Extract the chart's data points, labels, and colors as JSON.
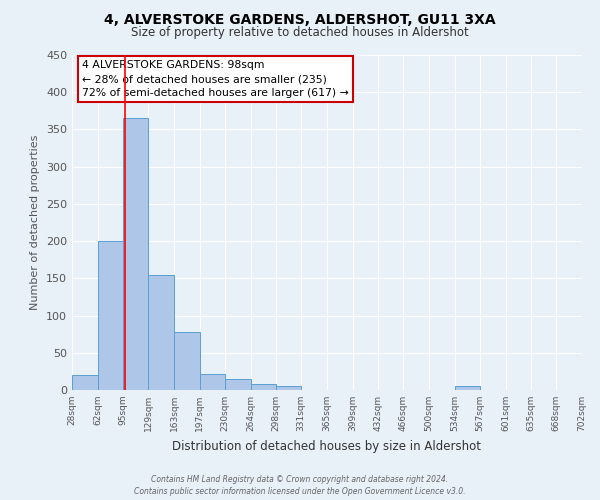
{
  "title": "4, ALVERSTOKE GARDENS, ALDERSHOT, GU11 3XA",
  "subtitle": "Size of property relative to detached houses in Aldershot",
  "xlabel": "Distribution of detached houses by size in Aldershot",
  "ylabel": "Number of detached properties",
  "bar_values": [
    20,
    200,
    365,
    155,
    78,
    22,
    15,
    8,
    5,
    0,
    0,
    0,
    0,
    0,
    0,
    5,
    0,
    0,
    0,
    0
  ],
  "bin_edges": [
    28,
    62,
    95,
    129,
    163,
    197,
    230,
    264,
    298,
    331,
    365,
    399,
    432,
    466,
    500,
    534,
    567,
    601,
    635,
    668,
    702
  ],
  "tick_labels": [
    "28sqm",
    "62sqm",
    "95sqm",
    "129sqm",
    "163sqm",
    "197sqm",
    "230sqm",
    "264sqm",
    "298sqm",
    "331sqm",
    "365sqm",
    "399sqm",
    "432sqm",
    "466sqm",
    "500sqm",
    "534sqm",
    "567sqm",
    "601sqm",
    "635sqm",
    "668sqm",
    "702sqm"
  ],
  "bar_color": "#aec6e8",
  "bar_edge_color": "#5a9fd4",
  "ylim": [
    0,
    450
  ],
  "yticks": [
    0,
    50,
    100,
    150,
    200,
    250,
    300,
    350,
    400,
    450
  ],
  "red_line_x": 98,
  "annotation_title": "4 ALVERSTOKE GARDENS: 98sqm",
  "annotation_line1": "← 28% of detached houses are smaller (235)",
  "annotation_line2": "72% of semi-detached houses are larger (617) →",
  "annotation_box_color": "#ffffff",
  "annotation_box_edge": "#cc0000",
  "bg_color": "#e8f0f8",
  "footer1": "Contains HM Land Registry data © Crown copyright and database right 2024.",
  "footer2": "Contains public sector information licensed under the Open Government Licence v3.0."
}
